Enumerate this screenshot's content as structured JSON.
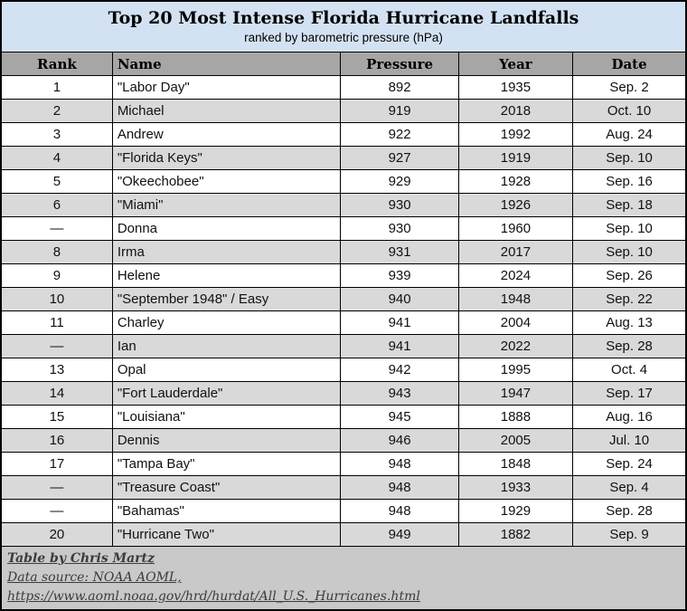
{
  "chart_data": {
    "type": "table",
    "title": "Top 20 Most Intense Florida Hurricane Landfalls",
    "subtitle": "ranked by barometric pressure (hPa)",
    "columns": [
      "Rank",
      "Name",
      "Pressure",
      "Year",
      "Date"
    ],
    "rows": [
      {
        "rank": "1",
        "name": "\"Labor Day\"",
        "pressure": 892,
        "year": 1935,
        "date": "Sep. 2"
      },
      {
        "rank": "2",
        "name": "Michael",
        "pressure": 919,
        "year": 2018,
        "date": "Oct. 10"
      },
      {
        "rank": "3",
        "name": "Andrew",
        "pressure": 922,
        "year": 1992,
        "date": "Aug. 24"
      },
      {
        "rank": "4",
        "name": "\"Florida Keys\"",
        "pressure": 927,
        "year": 1919,
        "date": "Sep. 10"
      },
      {
        "rank": "5",
        "name": "\"Okeechobee\"",
        "pressure": 929,
        "year": 1928,
        "date": "Sep. 16"
      },
      {
        "rank": "6",
        "name": "\"Miami\"",
        "pressure": 930,
        "year": 1926,
        "date": "Sep. 18"
      },
      {
        "rank": "—",
        "name": "Donna",
        "pressure": 930,
        "year": 1960,
        "date": "Sep. 10"
      },
      {
        "rank": "8",
        "name": "Irma",
        "pressure": 931,
        "year": 2017,
        "date": "Sep. 10"
      },
      {
        "rank": "9",
        "name": "Helene",
        "pressure": 939,
        "year": 2024,
        "date": "Sep. 26"
      },
      {
        "rank": "10",
        "name": "\"September 1948\" / Easy",
        "pressure": 940,
        "year": 1948,
        "date": "Sep. 22"
      },
      {
        "rank": "11",
        "name": "Charley",
        "pressure": 941,
        "year": 2004,
        "date": "Aug. 13"
      },
      {
        "rank": "—",
        "name": "Ian",
        "pressure": 941,
        "year": 2022,
        "date": "Sep. 28"
      },
      {
        "rank": "13",
        "name": "Opal",
        "pressure": 942,
        "year": 1995,
        "date": "Oct. 4"
      },
      {
        "rank": "14",
        "name": "\"Fort Lauderdale\"",
        "pressure": 943,
        "year": 1947,
        "date": "Sep. 17"
      },
      {
        "rank": "15",
        "name": "\"Louisiana\"",
        "pressure": 945,
        "year": 1888,
        "date": "Aug. 16"
      },
      {
        "rank": "16",
        "name": "Dennis",
        "pressure": 946,
        "year": 2005,
        "date": "Jul. 10"
      },
      {
        "rank": "17",
        "name": "\"Tampa Bay\"",
        "pressure": 948,
        "year": 1848,
        "date": "Sep. 24"
      },
      {
        "rank": "—",
        "name": "\"Treasure Coast\"",
        "pressure": 948,
        "year": 1933,
        "date": "Sep. 4"
      },
      {
        "rank": "—",
        "name": "\"Bahamas\"",
        "pressure": 948,
        "year": 1929,
        "date": "Sep. 28"
      },
      {
        "rank": "20",
        "name": "\"Hurricane Two\"",
        "pressure": 949,
        "year": 1882,
        "date": "Sep. 9"
      }
    ],
    "notes": [
      "Table by Chris Martz",
      "Data source: NOAA AOML,",
      "https://www.aoml.noaa.gov/hrd/hurdat/All_U.S._Hurricanes.html"
    ]
  },
  "colors": {
    "title_bg": "#d3e2f2",
    "header_bg": "#a6a6a6",
    "row_bg": "#ffffff",
    "row_alt_bg": "#d9d9d9",
    "footer_bg": "#c9c9c9",
    "border": "#000000",
    "footer_text": "#3b3b3b"
  }
}
